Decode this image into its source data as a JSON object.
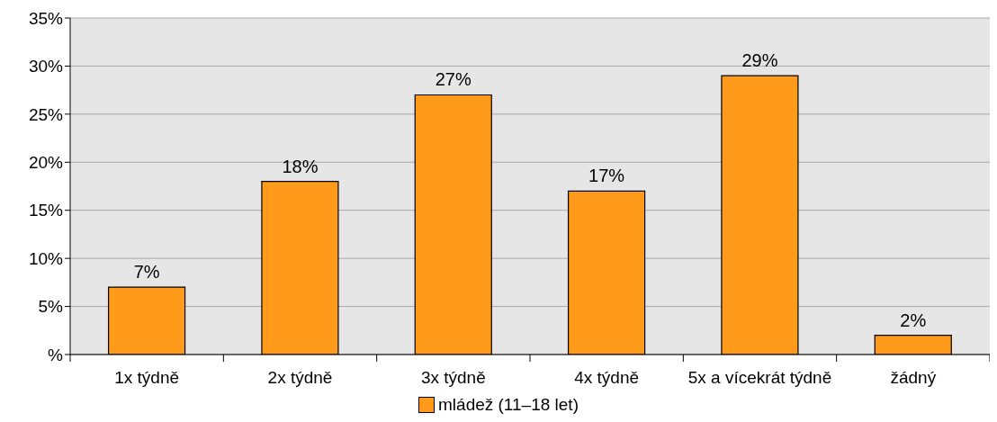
{
  "chart_data": {
    "type": "bar",
    "categories": [
      "1x týdně",
      "2x týdně",
      "3x týdně",
      "4x týdně",
      "5x a vícekrát týdně",
      "žádný"
    ],
    "series": [
      {
        "name": "mládež (11–18 let)",
        "color": "#ff9a1a",
        "values": [
          7,
          18,
          27,
          17,
          29,
          2
        ],
        "value_labels": [
          "7%",
          "18%",
          "27%",
          "17%",
          "29%",
          "2%"
        ]
      }
    ],
    "ylim": [
      0,
      35
    ],
    "yticks": [
      {
        "value": 0,
        "label": "%"
      },
      {
        "value": 5,
        "label": "5%"
      },
      {
        "value": 10,
        "label": "10%"
      },
      {
        "value": 15,
        "label": "15%"
      },
      {
        "value": 20,
        "label": "20%"
      },
      {
        "value": 25,
        "label": "25%"
      },
      {
        "value": 30,
        "label": "30%"
      },
      {
        "value": 35,
        "label": "35%"
      }
    ],
    "grid": "y",
    "legend": "bottom"
  }
}
